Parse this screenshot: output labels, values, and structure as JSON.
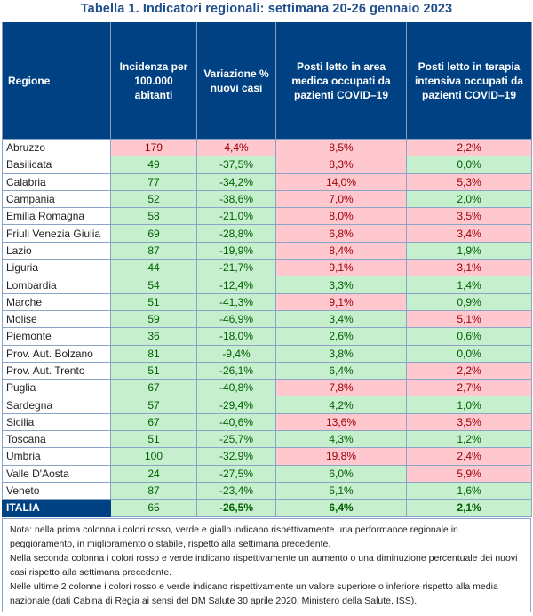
{
  "title": "Tabella 1. Indicatori regionali: settimana 20-26 gennaio 2023",
  "headers": [
    "Regione",
    "Incidenza per 100.000 abitanti",
    "Variazione % nuovi casi",
    "Posti letto in area medica occupati da pazienti COVID–19",
    "Posti letto in terapia intensiva occupati da pazienti COVID–19"
  ],
  "colors": {
    "header_bg": "#004183",
    "red_bg": "#ffc7ce",
    "red_text": "#9c0006",
    "green_bg": "#c6efce",
    "green_text": "#006100"
  },
  "rows": [
    {
      "regione": "Abruzzo",
      "incidenza": "179",
      "variazione": "4,4%",
      "area_medica": "8,5%",
      "terapia_intensiva": "2,2%",
      "status": [
        "red",
        "red",
        "red",
        "red"
      ]
    },
    {
      "regione": "Basilicata",
      "incidenza": "49",
      "variazione": "-37,5%",
      "area_medica": "8,3%",
      "terapia_intensiva": "0,0%",
      "status": [
        "green",
        "green",
        "red",
        "green"
      ]
    },
    {
      "regione": "Calabria",
      "incidenza": "77",
      "variazione": "-34,2%",
      "area_medica": "14,0%",
      "terapia_intensiva": "5,3%",
      "status": [
        "green",
        "green",
        "red",
        "red"
      ]
    },
    {
      "regione": "Campania",
      "incidenza": "52",
      "variazione": "-38,6%",
      "area_medica": "7,0%",
      "terapia_intensiva": "2,0%",
      "status": [
        "green",
        "green",
        "red",
        "green"
      ]
    },
    {
      "regione": "Emilia Romagna",
      "incidenza": "58",
      "variazione": "-21,0%",
      "area_medica": "8,0%",
      "terapia_intensiva": "3,5%",
      "status": [
        "green",
        "green",
        "red",
        "red"
      ]
    },
    {
      "regione": "Friuli Venezia Giulia",
      "incidenza": "69",
      "variazione": "-28,8%",
      "area_medica": "6,8%",
      "terapia_intensiva": "3,4%",
      "status": [
        "green",
        "green",
        "red",
        "red"
      ]
    },
    {
      "regione": "Lazio",
      "incidenza": "87",
      "variazione": "-19,9%",
      "area_medica": "8,4%",
      "terapia_intensiva": "1,9%",
      "status": [
        "green",
        "green",
        "red",
        "green"
      ]
    },
    {
      "regione": "Liguria",
      "incidenza": "44",
      "variazione": "-21,7%",
      "area_medica": "9,1%",
      "terapia_intensiva": "3,1%",
      "status": [
        "green",
        "green",
        "red",
        "red"
      ]
    },
    {
      "regione": "Lombardia",
      "incidenza": "54",
      "variazione": "-12,4%",
      "area_medica": "3,3%",
      "terapia_intensiva": "1,4%",
      "status": [
        "green",
        "green",
        "green",
        "green"
      ]
    },
    {
      "regione": "Marche",
      "incidenza": "51",
      "variazione": "-41,3%",
      "area_medica": "9,1%",
      "terapia_intensiva": "0,9%",
      "status": [
        "green",
        "green",
        "red",
        "green"
      ]
    },
    {
      "regione": "Molise",
      "incidenza": "59",
      "variazione": "-46,9%",
      "area_medica": "3,4%",
      "terapia_intensiva": "5,1%",
      "status": [
        "green",
        "green",
        "green",
        "red"
      ]
    },
    {
      "regione": "Piemonte",
      "incidenza": "36",
      "variazione": "-18,0%",
      "area_medica": "2,6%",
      "terapia_intensiva": "0,6%",
      "status": [
        "green",
        "green",
        "green",
        "green"
      ]
    },
    {
      "regione": "Prov. Aut. Bolzano",
      "incidenza": "81",
      "variazione": "-9,4%",
      "area_medica": "3,8%",
      "terapia_intensiva": "0,0%",
      "status": [
        "green",
        "green",
        "green",
        "green"
      ]
    },
    {
      "regione": "Prov. Aut. Trento",
      "incidenza": "51",
      "variazione": "-26,1%",
      "area_medica": "6,4%",
      "terapia_intensiva": "2,2%",
      "status": [
        "green",
        "green",
        "green",
        "red"
      ]
    },
    {
      "regione": "Puglia",
      "incidenza": "67",
      "variazione": "-40,8%",
      "area_medica": "7,8%",
      "terapia_intensiva": "2,7%",
      "status": [
        "green",
        "green",
        "red",
        "red"
      ]
    },
    {
      "regione": "Sardegna",
      "incidenza": "57",
      "variazione": "-29,4%",
      "area_medica": "4,2%",
      "terapia_intensiva": "1,0%",
      "status": [
        "green",
        "green",
        "green",
        "green"
      ]
    },
    {
      "regione": "Sicilia",
      "incidenza": "67",
      "variazione": "-40,6%",
      "area_medica": "13,6%",
      "terapia_intensiva": "3,5%",
      "status": [
        "green",
        "green",
        "red",
        "red"
      ]
    },
    {
      "regione": "Toscana",
      "incidenza": "51",
      "variazione": "-25,7%",
      "area_medica": "4,3%",
      "terapia_intensiva": "1,2%",
      "status": [
        "green",
        "green",
        "green",
        "green"
      ]
    },
    {
      "regione": "Umbria",
      "incidenza": "100",
      "variazione": "-32,9%",
      "area_medica": "19,8%",
      "terapia_intensiva": "2,4%",
      "status": [
        "green",
        "green",
        "red",
        "red"
      ]
    },
    {
      "regione": "Valle D'Aosta",
      "incidenza": "24",
      "variazione": "-27,5%",
      "area_medica": "6,0%",
      "terapia_intensiva": "5,9%",
      "status": [
        "green",
        "green",
        "green",
        "red"
      ]
    },
    {
      "regione": "Veneto",
      "incidenza": "87",
      "variazione": "-23,4%",
      "area_medica": "5,1%",
      "terapia_intensiva": "1,6%",
      "status": [
        "green",
        "green",
        "green",
        "green"
      ]
    }
  ],
  "total": {
    "regione": "ITALIA",
    "incidenza": "65",
    "variazione": "-26,5%",
    "area_medica": "6,4%",
    "terapia_intensiva": "2,1%",
    "status": [
      "green",
      "green",
      "green",
      "green"
    ]
  },
  "note": [
    "Nota: nella prima colonna i colori rosso, verde e giallo indicano rispettivamente una performance regionale in peggioramento, in miglioramento o stabile, rispetto alla settimana precedente.",
    "Nella seconda colonna i colori rosso e verde indicano rispettivamente un aumento o una diminuzione percentuale dei nuovi casi rispetto alla settimana precedente.",
    "Nelle ultime 2 colonne i colori rosso e verde indicano rispettivamente un valore superiore o inferiore rispetto alla media nazionale (dati Cabina di Regia ai sensi del DM Salute 30 aprile 2020. Ministero della Salute, ISS)."
  ]
}
